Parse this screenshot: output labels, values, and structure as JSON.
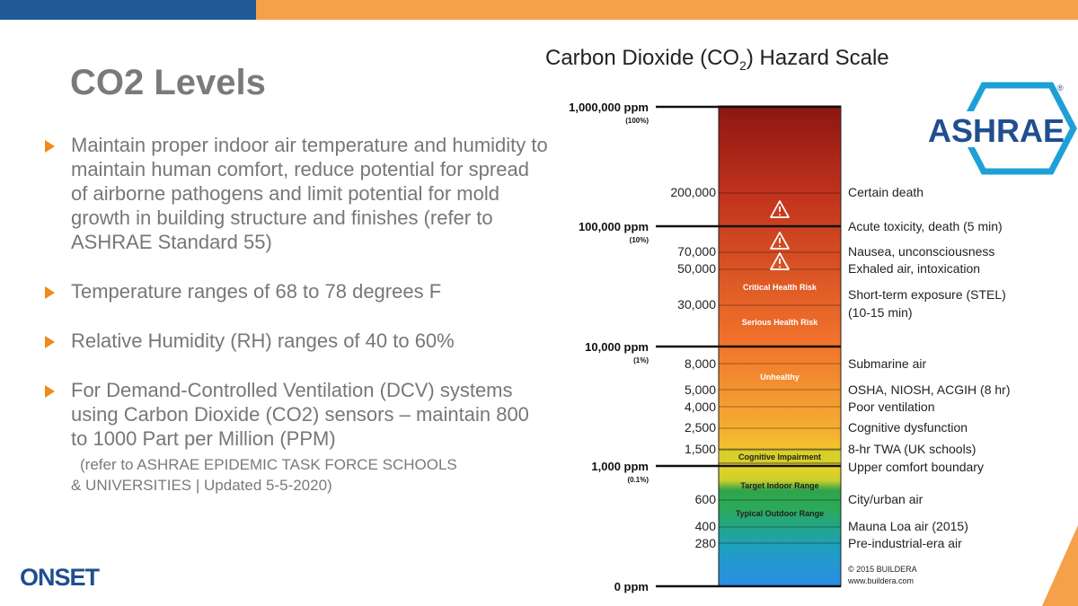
{
  "slide": {
    "title": "CO2 Levels",
    "bullets": [
      {
        "text": "Maintain proper indoor air temperature and humidity to maintain human comfort, reduce potential for spread of airborne pathogens and limit potential for mold growth in building structure and finishes (refer to ASHRAE Standard 55)"
      },
      {
        "text": "Temperature ranges of 68 to 78 degrees F"
      },
      {
        "text": "Relative Humidity (RH) ranges of 40 to 60%"
      },
      {
        "text": "For Demand-Controlled Ventilation (DCV) systems using Carbon Dioxide (CO2) sensors – maintain 800 to 1000 Part per Million (PPM)",
        "note_line1": "(refer to ASHRAE EPIDEMIC TASK FORCE SCHOOLS",
        "note_line2": "& UNIVERSITIES | Updated 5-5-2020)"
      }
    ],
    "footer_logo": "ONSET"
  },
  "hazard_scale": {
    "title_prefix": "Carbon Dioxide (CO",
    "title_sub": "2",
    "title_suffix": ") Hazard Scale",
    "ashrae_logo": "ASHRAE",
    "ashrae_mark": "®",
    "major_ticks": [
      {
        "label": "1,000,000 ppm",
        "sub": "(100%)"
      },
      {
        "label": "100,000 ppm",
        "sub": "(10%)"
      },
      {
        "label": "10,000 ppm",
        "sub": "(1%)"
      },
      {
        "label": "1,000 ppm",
        "sub": "(0.1%)"
      },
      {
        "label": "0 ppm",
        "sub": ""
      }
    ],
    "levels": [
      {
        "ppm": "200,000",
        "desc": "Certain death"
      },
      {
        "ppm": "",
        "desc": "Acute toxicity, death (5 min)"
      },
      {
        "ppm": "70,000",
        "desc": "Nausea, unconsciousness"
      },
      {
        "ppm": "50,000",
        "desc": "Exhaled air, intoxication"
      },
      {
        "ppm": "30,000",
        "desc": "Short-term exposure (STEL)",
        "desc2": "(10-15 min)"
      },
      {
        "ppm": "8,000",
        "desc": "Submarine air"
      },
      {
        "ppm": "5,000",
        "desc": "OSHA, NIOSH, ACGIH (8 hr)"
      },
      {
        "ppm": "4,000",
        "desc": "Poor ventilation"
      },
      {
        "ppm": "2,500",
        "desc": "Cognitive dysfunction"
      },
      {
        "ppm": "1,500",
        "desc": "8-hr TWA (UK schools)"
      },
      {
        "ppm": "",
        "desc": "Upper comfort boundary"
      },
      {
        "ppm": "600",
        "desc": "City/urban air"
      },
      {
        "ppm": "400",
        "desc": "Mauna Loa air (2015)"
      },
      {
        "ppm": "280",
        "desc": "Pre-industrial-era air"
      }
    ],
    "zones": [
      "Critical Health Risk",
      "Serious Health Risk",
      "Unhealthy",
      "Cognitive Impairment",
      "Target Indoor Range",
      "Typical Outdoor Range"
    ],
    "copyright": "© 2015 BUILDERA",
    "website": "www.buildera.com",
    "colors": {
      "top": "#8f1a12",
      "orange": "#f06a2a",
      "yellow": "#f2d22a",
      "green": "#2aa84a",
      "blue": "#2a8ae6",
      "teal": "#1aa08a"
    }
  }
}
